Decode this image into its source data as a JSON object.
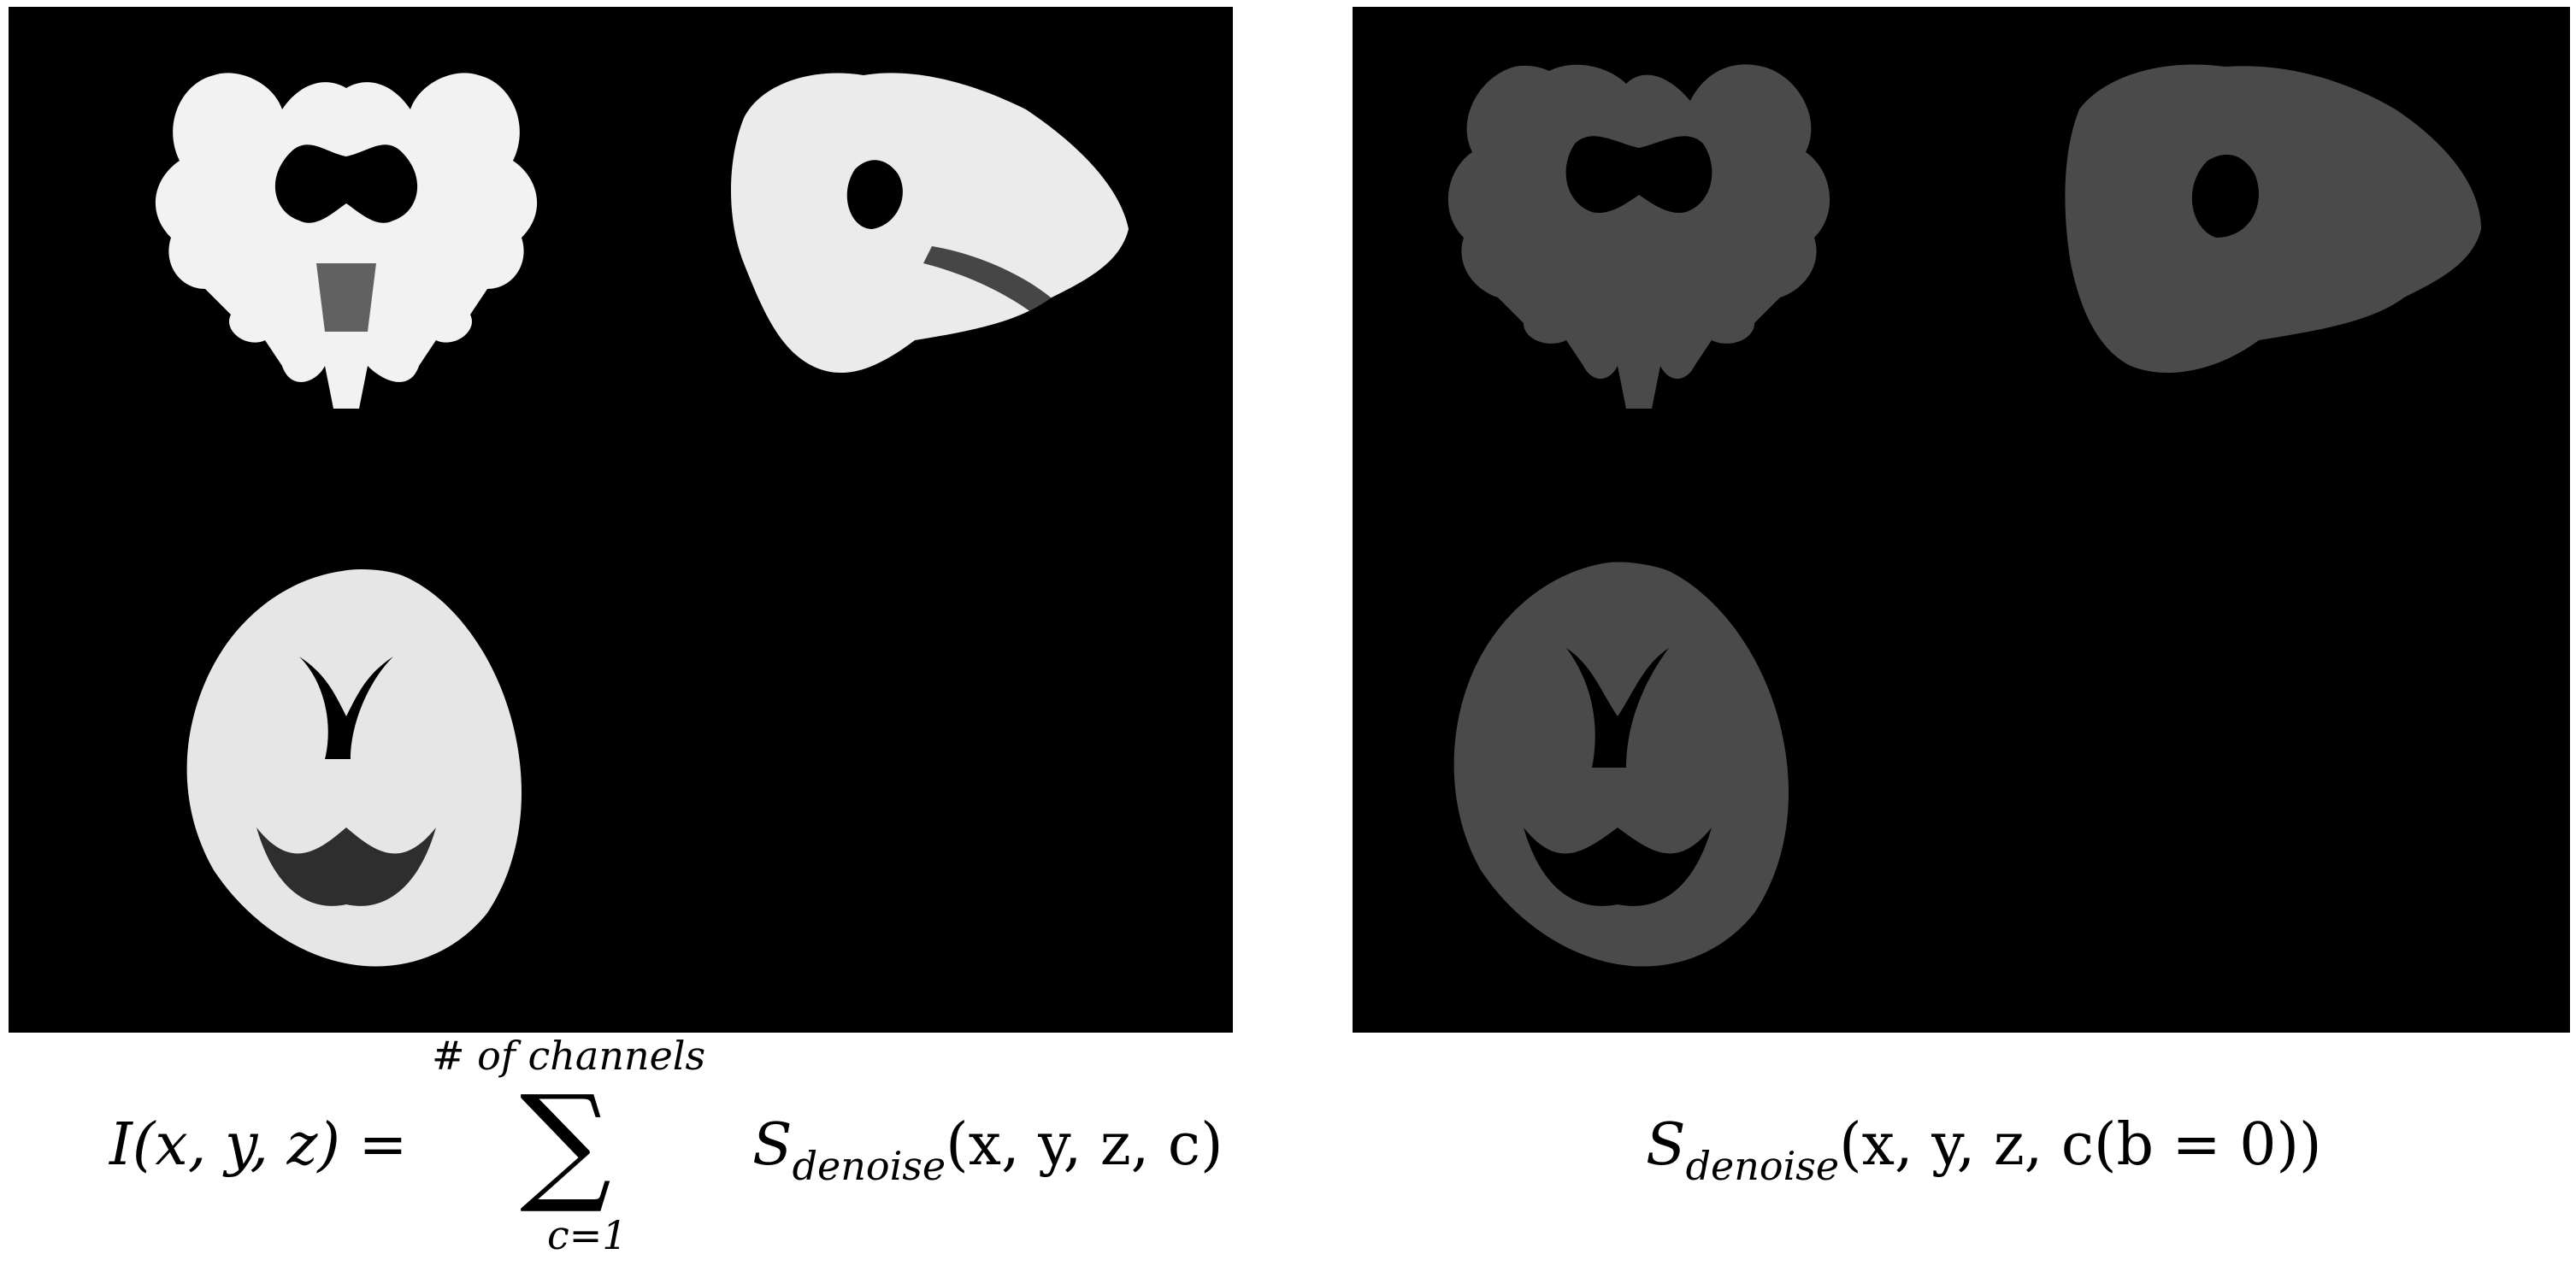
{
  "figure": {
    "left_panel": {
      "label": "left-panel",
      "views": [
        "coronal",
        "sagittal",
        "axial"
      ],
      "tone": "white-matter-bright"
    },
    "right_panel": {
      "label": "right-panel",
      "views": [
        "coronal",
        "sagittal",
        "axial"
      ],
      "tone": "gray-noisy"
    },
    "colors": {
      "background": "#000000",
      "left_tissue": "#ffffff",
      "right_tissue": "#4a4a4a"
    }
  },
  "equation_left": {
    "lhs": "I(x, y, z) =",
    "sum_upper": "# of channels",
    "sum_symbol": "∑",
    "sum_lower": "c=1",
    "rhs_base": "S",
    "rhs_sub": "denoise",
    "rhs_args": "(x, y, z, c)"
  },
  "equation_right": {
    "base": "S",
    "sub": "denoise",
    "args": "(x, y, z, c(b = 0))"
  }
}
